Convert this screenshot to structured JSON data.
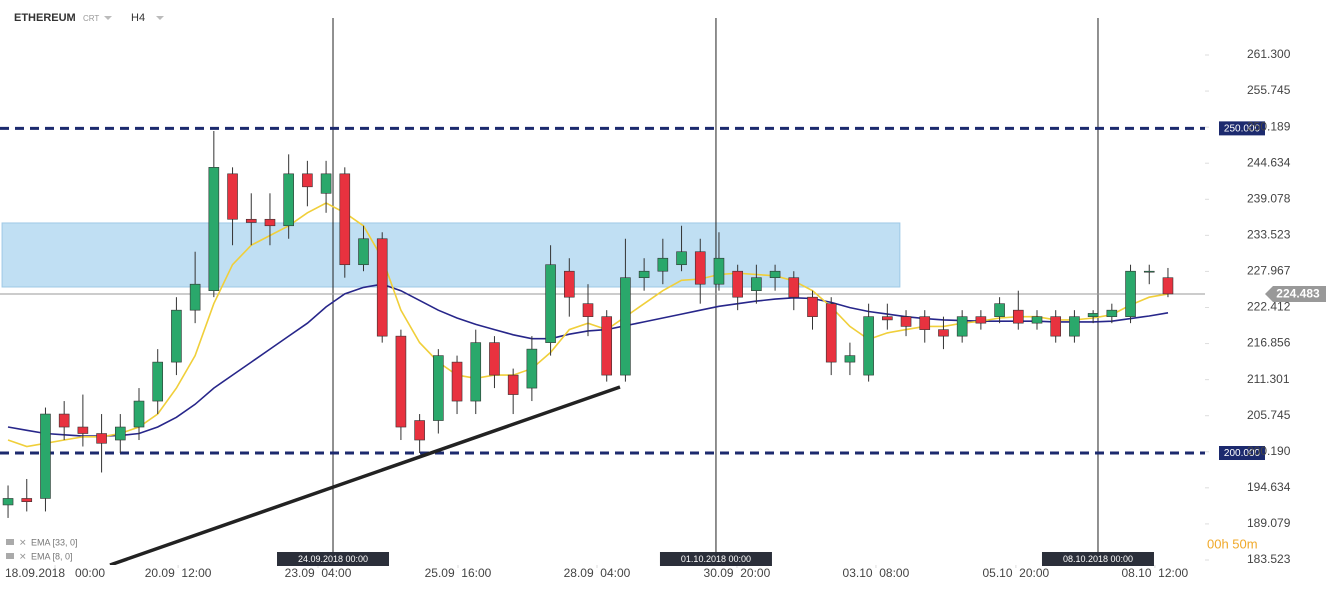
{
  "chart_data": {
    "type": "candlestick",
    "title": "ETHEREUM",
    "subtitle": "CRT",
    "interval": "H4",
    "timer": "00h 50m",
    "ylim": [
      182.75,
      267.0
    ],
    "yticks": [
      {
        "value": 261.3,
        "label": "261.300"
      },
      {
        "value": 255.745,
        "label": "255.745"
      },
      {
        "value": 250.189,
        "label": "250.189"
      },
      {
        "value": 244.634,
        "label": "244.634"
      },
      {
        "value": 239.078,
        "label": "239.078"
      },
      {
        "value": 233.523,
        "label": "233.523"
      },
      {
        "value": 227.967,
        "label": "227.967"
      },
      {
        "value": 222.412,
        "label": "222.412"
      },
      {
        "value": 216.856,
        "label": "216.856"
      },
      {
        "value": 211.301,
        "label": "211.301"
      },
      {
        "value": 205.745,
        "label": "205.745"
      },
      {
        "value": 200.19,
        "label": "200.190"
      },
      {
        "value": 194.634,
        "label": "194.634"
      },
      {
        "value": 189.079,
        "label": "189.079"
      },
      {
        "value": 183.523,
        "label": "183.523"
      }
    ],
    "xlim": [
      -0.43,
      63.98
    ],
    "xticks": [
      {
        "value": 2.51,
        "label": "18.09.2018   00:00"
      },
      {
        "value": 9.09,
        "label": "20.09  12:00"
      },
      {
        "value": 16.57,
        "label": "23.09  04:00"
      },
      {
        "value": 24.05,
        "label": "25.09  16:00"
      },
      {
        "value": 31.48,
        "label": "28.09  04:00"
      },
      {
        "value": 38.96,
        "label": "30.09  20:00"
      },
      {
        "value": 46.39,
        "label": "03.10  08:00"
      },
      {
        "value": 53.87,
        "label": "05.10  20:00"
      },
      {
        "value": 61.3,
        "label": "08.10  12:00"
      }
    ],
    "separators": [
      {
        "value": 17.37,
        "label": "24.09.2018 00:00"
      },
      {
        "value": 37.84,
        "label": "01.10.2018 00:00"
      },
      {
        "value": 58.26,
        "label": "08.10.2018 00:00"
      }
    ],
    "up_color": "#2aa86b",
    "down_color": "#e8323f",
    "open": [
      192,
      193,
      193,
      206,
      204,
      203,
      202,
      204,
      208,
      214,
      222,
      225,
      243,
      236,
      236,
      235,
      243,
      240,
      243,
      229,
      233,
      218,
      205,
      205,
      214,
      208,
      217,
      212,
      210,
      217,
      228,
      223,
      221,
      212,
      227,
      228,
      229,
      231,
      226,
      228,
      225,
      227,
      227,
      224,
      223,
      214,
      212,
      221,
      221,
      221,
      219,
      218,
      221,
      221,
      222,
      220,
      221,
      218,
      221,
      221,
      221,
      228,
      227
    ],
    "high": [
      195,
      196,
      207,
      208,
      209,
      206,
      206,
      210,
      216,
      224,
      231,
      249.6,
      244,
      240,
      240,
      246,
      245,
      245,
      244,
      235,
      234,
      219,
      206,
      216,
      215,
      219,
      218,
      213,
      218,
      232,
      230,
      226,
      222,
      233,
      230,
      233,
      235,
      233,
      234,
      229,
      229,
      229,
      228,
      225,
      224,
      217,
      223,
      223,
      222,
      222,
      221,
      222,
      222,
      224,
      225,
      222,
      222,
      222,
      222,
      223,
      229,
      229,
      228.5
    ],
    "low": [
      190,
      191,
      191,
      202,
      201,
      197,
      200,
      202,
      206,
      212,
      220,
      224,
      232,
      232,
      232,
      233,
      238,
      237,
      227,
      228,
      217,
      202,
      200,
      203,
      206,
      206,
      210,
      206,
      208,
      215,
      221,
      218,
      211,
      211,
      225,
      226,
      228,
      223,
      225,
      222,
      223,
      225,
      222,
      219,
      212,
      212,
      211,
      219,
      218,
      217,
      216,
      217,
      219,
      220,
      219,
      219,
      217,
      217,
      220,
      220,
      220,
      226,
      224
    ],
    "close": [
      193,
      192.5,
      206,
      204,
      203,
      201.5,
      204,
      208,
      214,
      222,
      226,
      244,
      236,
      235.5,
      235,
      243,
      241,
      243,
      229,
      233,
      218,
      204,
      202,
      215,
      208,
      217,
      212,
      209,
      216,
      229,
      224,
      221,
      212,
      227,
      228,
      230,
      231,
      226,
      230,
      224,
      227,
      228,
      224,
      221,
      214,
      215,
      221,
      220.5,
      219.5,
      219,
      218,
      221,
      220,
      223,
      220,
      221,
      218,
      221,
      221.5,
      222,
      228,
      228,
      224.5
    ],
    "series": [
      {
        "name": "EMA [33, 0]",
        "color": "#27268a",
        "values": [
          204,
          203.5,
          203,
          202.8,
          202.6,
          202.6,
          202.7,
          203,
          204,
          205.5,
          207.5,
          210,
          212,
          214,
          216,
          218,
          220,
          222.5,
          224.5,
          225.5,
          226,
          225,
          223.5,
          222,
          220.8,
          219.8,
          219,
          218.2,
          217.6,
          217.6,
          218.3,
          218.8,
          219,
          219.6,
          220.2,
          220.8,
          221.4,
          222,
          222.6,
          223,
          223.4,
          223.7,
          223.9,
          223.8,
          223.2,
          222.4,
          221.8,
          221.4,
          221,
          220.7,
          220.5,
          220.4,
          220.3,
          220.3,
          220.3,
          220.3,
          220.2,
          220.2,
          220.2,
          220.3,
          220.7,
          221.1,
          221.6
        ]
      },
      {
        "name": "EMA [8, 0]",
        "color": "#f0cf3a",
        "values": [
          202,
          201,
          201.5,
          202,
          202.5,
          202.5,
          203,
          204,
          206,
          210,
          215,
          223,
          229,
          232,
          233.5,
          235,
          237,
          238.5,
          237,
          235,
          230,
          222,
          217,
          214,
          212,
          211.5,
          212,
          212,
          213,
          215.5,
          219,
          220,
          219,
          221,
          223,
          225,
          226.6,
          226.8,
          227.5,
          227.7,
          227.5,
          227.3,
          226.5,
          225,
          222.5,
          219.5,
          217.5,
          218.5,
          219,
          219.5,
          219.5,
          220,
          220.3,
          220.8,
          221,
          221,
          220.5,
          220.5,
          220.8,
          221.3,
          222.8,
          224,
          224.5
        ]
      }
    ],
    "levels": [
      {
        "value": 250,
        "label": "250.000"
      },
      {
        "value": 200,
        "label": "200.000"
      }
    ],
    "current_price": {
      "value": 224.483,
      "label": "224.483"
    },
    "zone": {
      "x": [
        -0.32,
        47.67
      ],
      "values": [
        225.57,
        235.43
      ]
    },
    "trendline": {
      "x": [
        5.45,
        32.71
      ],
      "values": [
        182.75,
        210.17
      ]
    }
  }
}
